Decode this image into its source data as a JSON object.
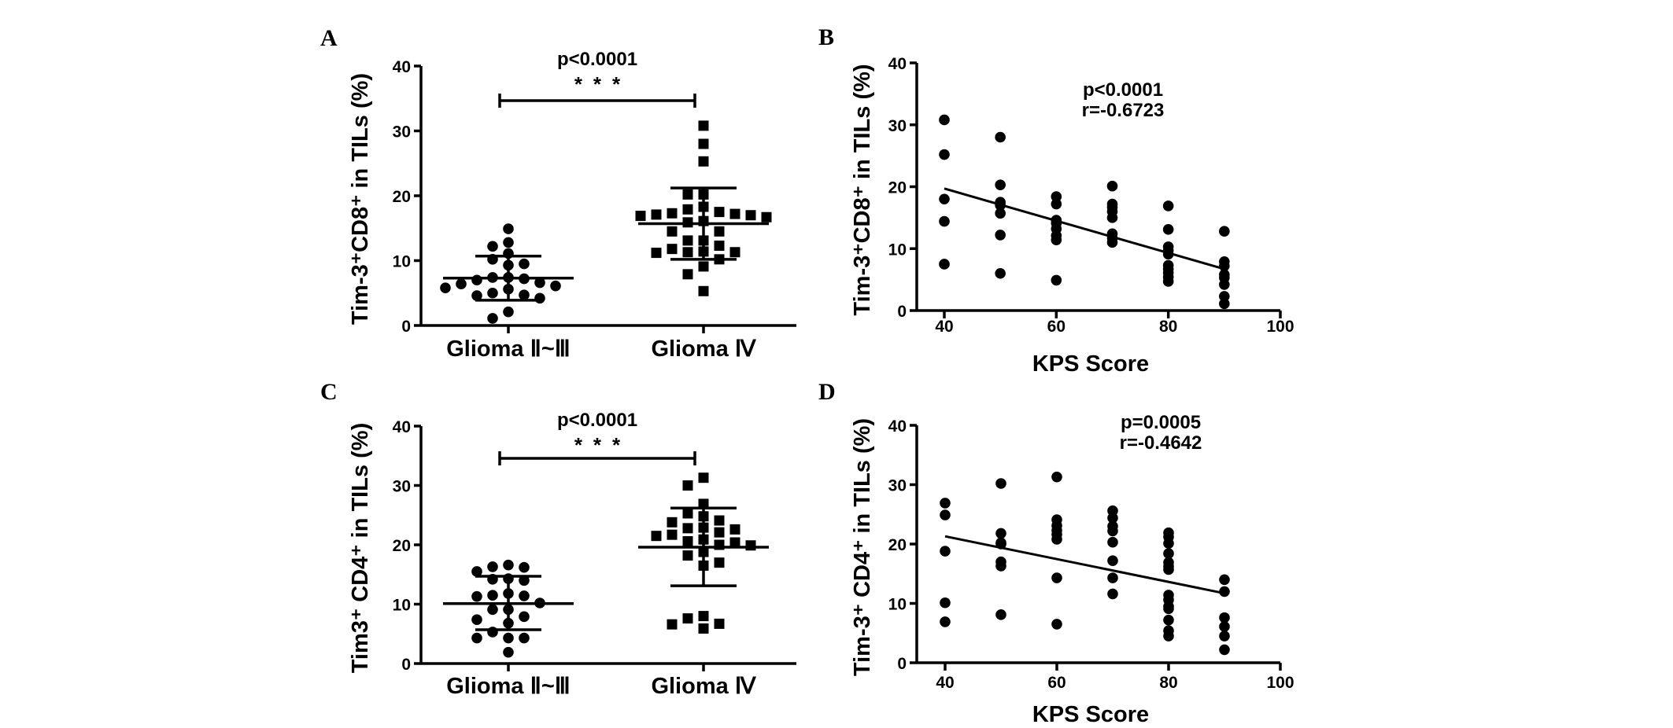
{
  "chart_data": [
    {
      "panel": "A",
      "type": "scatter",
      "subtype": "dot-plot-mean-sd",
      "ylabel": "Tim-3⁺CD8⁺ in TILs (%)",
      "ylim": [
        0,
        40
      ],
      "yticks": [
        "0",
        "10",
        "20",
        "30",
        "40"
      ],
      "categories": [
        "Glioma Ⅱ~Ⅲ",
        "Glioma Ⅳ"
      ],
      "significance": {
        "p_text": "p<0.0001",
        "stars": "***"
      },
      "groups": [
        {
          "name": "Glioma Ⅱ~Ⅲ",
          "marker": "circle",
          "mean": 7.3,
          "sd_upper": 10.7,
          "sd_lower": 3.9,
          "values": [
            14.9,
            12.8,
            12.2,
            11.1,
            10.2,
            9.5,
            9.3,
            7.4,
            7.2,
            7.0,
            7.4,
            6.4,
            6.6,
            5.8,
            6.1,
            5.0,
            4.6,
            4.7,
            5.6,
            4.2,
            2.1,
            1.1
          ]
        },
        {
          "name": "Glioma Ⅳ",
          "marker": "square",
          "mean": 15.7,
          "sd_upper": 21.2,
          "sd_lower": 10.2,
          "values": [
            30.8,
            28.0,
            25.3,
            20.2,
            20.2,
            18.3,
            17.9,
            17.3,
            17.1,
            17.0,
            16.9,
            17.2,
            17.5,
            16.7,
            16.1,
            15.9,
            14.5,
            14.5,
            13.1,
            13.1,
            12.3,
            11.8,
            11.3,
            11.3,
            11.2,
            11.4,
            10.2,
            9.1,
            7.9,
            5.3
          ]
        }
      ]
    },
    {
      "panel": "B",
      "type": "scatter",
      "ylabel": "Tim-3⁺CD8⁺ in TILs (%)",
      "xlabel": "KPS Score",
      "ylim": [
        0,
        40
      ],
      "xlim": [
        35,
        100
      ],
      "yticks": [
        "0",
        "10",
        "20",
        "30",
        "40"
      ],
      "xticks": [
        "40",
        "60",
        "80",
        "100"
      ],
      "annotation": {
        "p_text": "p<0.0001",
        "r_text": "r=-0.6723"
      },
      "regression": {
        "x": [
          40,
          90
        ],
        "y": [
          19.7,
          6.7
        ]
      },
      "points": [
        [
          40,
          30.8
        ],
        [
          40,
          25.2
        ],
        [
          40,
          18.0
        ],
        [
          40,
          14.4
        ],
        [
          40,
          7.5
        ],
        [
          50,
          28.0
        ],
        [
          50,
          20.3
        ],
        [
          50,
          17.5
        ],
        [
          50,
          17.0
        ],
        [
          50,
          15.7
        ],
        [
          50,
          12.2
        ],
        [
          50,
          6.0
        ],
        [
          60,
          18.4
        ],
        [
          60,
          17.2
        ],
        [
          60,
          14.6
        ],
        [
          60,
          14.1
        ],
        [
          60,
          13.2
        ],
        [
          60,
          12.1
        ],
        [
          60,
          11.4
        ],
        [
          60,
          4.9
        ],
        [
          70,
          20.1
        ],
        [
          70,
          17.2
        ],
        [
          70,
          16.7
        ],
        [
          70,
          16.0
        ],
        [
          70,
          15.0
        ],
        [
          70,
          12.4
        ],
        [
          70,
          11.7
        ],
        [
          70,
          11.0
        ],
        [
          80,
          16.9
        ],
        [
          80,
          13.1
        ],
        [
          80,
          10.3
        ],
        [
          80,
          9.7
        ],
        [
          80,
          9.1
        ],
        [
          80,
          7.3
        ],
        [
          80,
          6.7
        ],
        [
          80,
          6.1
        ],
        [
          80,
          5.4
        ],
        [
          80,
          4.7
        ],
        [
          90,
          12.8
        ],
        [
          90,
          7.9
        ],
        [
          90,
          7.2
        ],
        [
          90,
          5.8
        ],
        [
          90,
          5.3
        ],
        [
          90,
          4.2
        ],
        [
          90,
          2.3
        ],
        [
          90,
          1.1
        ]
      ]
    },
    {
      "panel": "C",
      "type": "scatter",
      "subtype": "dot-plot-mean-sd",
      "ylabel": "Tim3⁺ CD4⁺ in TILs (%)",
      "ylim": [
        0,
        40
      ],
      "yticks": [
        "0",
        "10",
        "20",
        "30",
        "40"
      ],
      "categories": [
        "Glioma Ⅱ~Ⅲ",
        "Glioma Ⅳ"
      ],
      "significance": {
        "p_text": "p<0.0001",
        "stars": "***"
      },
      "groups": [
        {
          "name": "Glioma Ⅱ~Ⅲ",
          "marker": "circle",
          "mean": 10.1,
          "sd_upper": 14.7,
          "sd_lower": 5.7,
          "values": [
            16.6,
            16.2,
            15.5,
            16.3,
            14.3,
            14.0,
            14.2,
            11.5,
            11.3,
            11.4,
            11.8,
            10.2,
            9.1,
            9.1,
            7.9,
            7.4,
            6.8,
            5.3,
            4.3,
            4.3,
            4.3,
            1.9
          ]
        },
        {
          "name": "Glioma Ⅳ",
          "marker": "square",
          "mean": 19.6,
          "sd_upper": 26.2,
          "sd_lower": 13.1,
          "values": [
            31.3,
            30.0,
            26.9,
            25.3,
            24.8,
            24.1,
            23.8,
            22.9,
            22.8,
            22.6,
            22.1,
            21.7,
            21.5,
            20.9,
            20.6,
            20.4,
            20.0,
            19.9,
            18.8,
            18.2,
            17.0,
            16.5,
            8.0,
            7.6,
            6.7,
            6.6,
            5.9
          ]
        }
      ]
    },
    {
      "panel": "D",
      "type": "scatter",
      "ylabel": "Tim-3⁺ CD4⁺ in TILs (%)",
      "xlabel": "KPS Score",
      "ylim": [
        0,
        40
      ],
      "xlim": [
        35,
        100
      ],
      "yticks": [
        "0",
        "10",
        "20",
        "30",
        "40"
      ],
      "xticks": [
        "40",
        "60",
        "80",
        "100"
      ],
      "annotation": {
        "p_text": "p=0.0005",
        "r_text": "r=-0.4642"
      },
      "regression": {
        "x": [
          40,
          90
        ],
        "y": [
          21.3,
          11.7
        ]
      },
      "points": [
        [
          40,
          26.9
        ],
        [
          40,
          24.9
        ],
        [
          40,
          18.8
        ],
        [
          40,
          10.1
        ],
        [
          40,
          6.9
        ],
        [
          50,
          30.2
        ],
        [
          50,
          21.8
        ],
        [
          50,
          20.2
        ],
        [
          50,
          20.0
        ],
        [
          50,
          17.0
        ],
        [
          50,
          16.3
        ],
        [
          50,
          8.1
        ],
        [
          60,
          31.3
        ],
        [
          60,
          24.1
        ],
        [
          60,
          23.1
        ],
        [
          60,
          22.3
        ],
        [
          60,
          21.6
        ],
        [
          60,
          20.8
        ],
        [
          60,
          14.3
        ],
        [
          60,
          6.5
        ],
        [
          70,
          25.6
        ],
        [
          70,
          24.4
        ],
        [
          70,
          23.0
        ],
        [
          70,
          22.2
        ],
        [
          70,
          20.3
        ],
        [
          70,
          17.2
        ],
        [
          70,
          14.3
        ],
        [
          70,
          11.6
        ],
        [
          80,
          21.9
        ],
        [
          80,
          21.2
        ],
        [
          80,
          20.1
        ],
        [
          80,
          18.4
        ],
        [
          80,
          16.9
        ],
        [
          80,
          16.2
        ],
        [
          80,
          15.7
        ],
        [
          80,
          11.4
        ],
        [
          80,
          10.6
        ],
        [
          80,
          9.5
        ],
        [
          80,
          9.1
        ],
        [
          80,
          7.2
        ],
        [
          80,
          5.4
        ],
        [
          80,
          4.5
        ],
        [
          90,
          14.0
        ],
        [
          90,
          12.0
        ],
        [
          90,
          7.6
        ],
        [
          90,
          6.1
        ],
        [
          90,
          4.5
        ],
        [
          90,
          2.2
        ]
      ]
    }
  ],
  "panel_letters": [
    "A",
    "B",
    "C",
    "D"
  ]
}
